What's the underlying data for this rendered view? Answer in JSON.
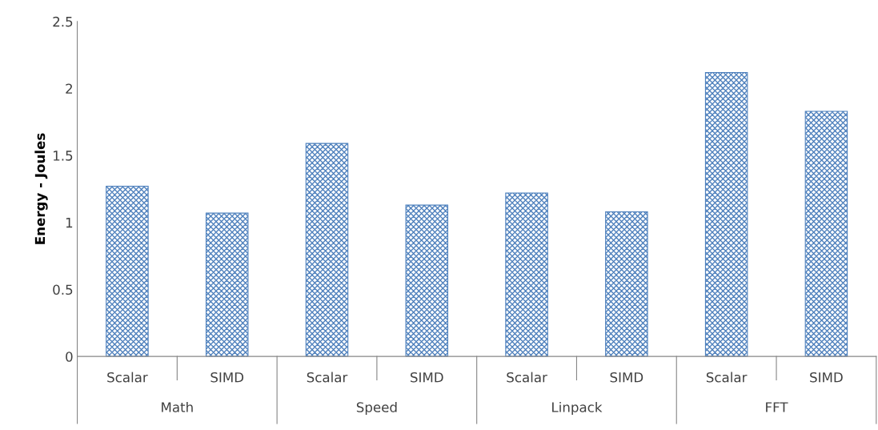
{
  "chart_data": {
    "type": "bar",
    "ylabel": "Energy - Joules",
    "categories": [
      "Scalar",
      "SIMD",
      "Scalar",
      "SIMD",
      "Scalar",
      "SIMD",
      "Scalar",
      "SIMD"
    ],
    "values": [
      1.27,
      1.07,
      1.59,
      1.13,
      1.22,
      1.08,
      2.12,
      1.83
    ],
    "color": "#4f81bd",
    "ylim": [
      0,
      2.5
    ],
    "yticks": [
      0,
      0.5,
      1,
      1.5,
      2,
      2.5
    ],
    "grid": false,
    "legend": false,
    "annotations": [
      "Math",
      "Speed",
      "Linpack",
      "FFT"
    ]
  }
}
